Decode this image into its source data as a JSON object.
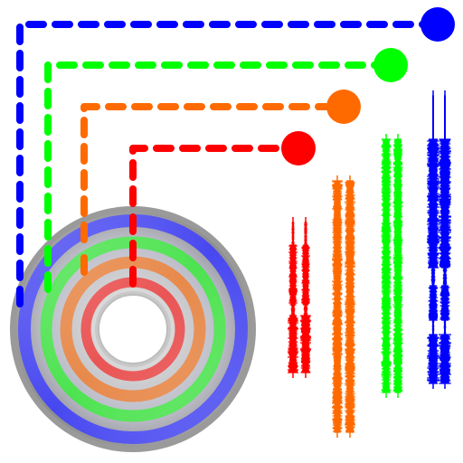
{
  "colors": {
    "background": "#ffffff",
    "blue": "#0000ff",
    "green": "#00ff00",
    "orange": "#ff6a00",
    "red": "#ff0000",
    "disc_rim": "#9a9a9a",
    "disc_inner": "#d0d0d0",
    "disc_hole": "#ffffff"
  },
  "icons": {
    "disc": "disc-icon",
    "waveforms": "waveform-icon",
    "endpoints": "circle-dot-icon"
  },
  "tracks": [
    {
      "name": "blue",
      "color": "#0000ff"
    },
    {
      "name": "green",
      "color": "#00ff00"
    },
    {
      "name": "orange",
      "color": "#ff6a00"
    },
    {
      "name": "red",
      "color": "#ff0000"
    }
  ]
}
